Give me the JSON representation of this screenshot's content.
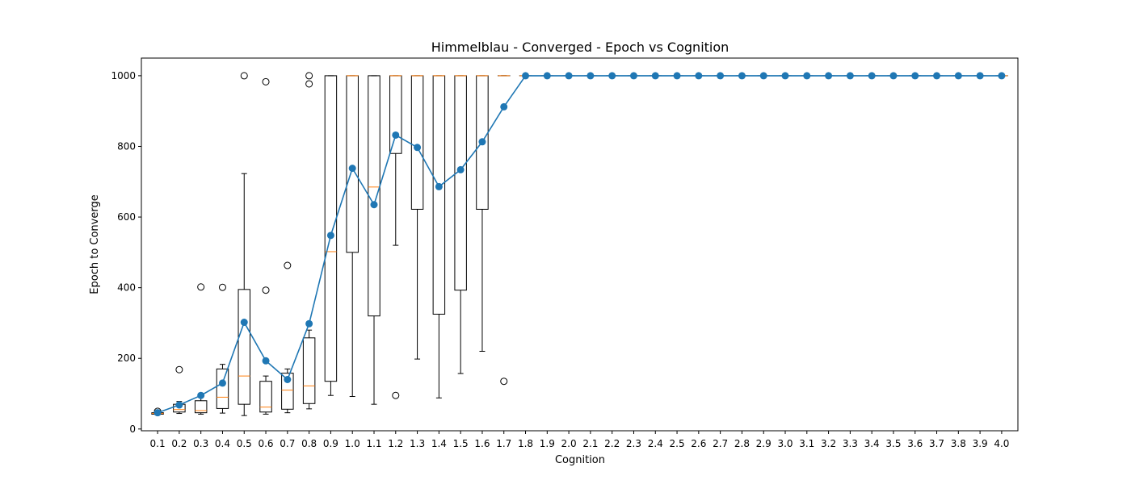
{
  "chart_data": {
    "type": "box-line",
    "title": "Himmelblau - Converged - Epoch vs Cognition",
    "xlabel": "Cognition",
    "ylabel": "Epoch to Converge",
    "ylim": [
      -5,
      1050
    ],
    "yticks": [
      0,
      200,
      400,
      600,
      800,
      1000
    ],
    "grid": false,
    "categories": [
      "0.1",
      "0.2",
      "0.3",
      "0.4",
      "0.5",
      "0.6",
      "0.7",
      "0.8",
      "0.9",
      "1.0",
      "1.1",
      "1.2",
      "1.3",
      "1.4",
      "1.5",
      "1.6",
      "1.7",
      "1.8",
      "1.9",
      "2.0",
      "2.1",
      "2.2",
      "2.3",
      "2.4",
      "2.5",
      "2.6",
      "2.7",
      "2.8",
      "2.9",
      "3.0",
      "3.1",
      "3.2",
      "3.3",
      "3.4",
      "3.5",
      "3.6",
      "3.7",
      "3.8",
      "3.9",
      "4.0"
    ],
    "boxes": [
      {
        "whislo": 40,
        "q1": 42,
        "med": 44,
        "q3": 46,
        "whishi": 48,
        "fliers": [
          50
        ]
      },
      {
        "whislo": 44,
        "q1": 48,
        "med": 55,
        "q3": 70,
        "whishi": 78,
        "fliers": [
          168
        ]
      },
      {
        "whislo": 42,
        "q1": 46,
        "med": 52,
        "q3": 80,
        "whishi": 90,
        "fliers": [
          402
        ]
      },
      {
        "whislo": 45,
        "q1": 58,
        "med": 90,
        "q3": 170,
        "whishi": 183,
        "fliers": [
          401
        ]
      },
      {
        "whislo": 38,
        "q1": 70,
        "med": 150,
        "q3": 395,
        "whishi": 723,
        "fliers": [
          1000
        ]
      },
      {
        "whislo": 42,
        "q1": 48,
        "med": 62,
        "q3": 135,
        "whishi": 150,
        "fliers": [
          393,
          983
        ]
      },
      {
        "whislo": 46,
        "q1": 56,
        "med": 110,
        "q3": 158,
        "whishi": 170,
        "fliers": [
          463
        ]
      },
      {
        "whislo": 57,
        "q1": 72,
        "med": 122,
        "q3": 258,
        "whishi": 280,
        "fliers": [
          977,
          1000
        ]
      },
      {
        "whislo": 95,
        "q1": 135,
        "med": 502,
        "q3": 1000,
        "whishi": 1000,
        "fliers": []
      },
      {
        "whislo": 92,
        "q1": 500,
        "med": 1000,
        "q3": 1000,
        "whishi": 1000,
        "fliers": []
      },
      {
        "whislo": 70,
        "q1": 320,
        "med": 685,
        "q3": 1000,
        "whishi": 1000,
        "fliers": []
      },
      {
        "whislo": 520,
        "q1": 780,
        "med": 1000,
        "q3": 1000,
        "whishi": 1000,
        "fliers": [
          95
        ]
      },
      {
        "whislo": 198,
        "q1": 622,
        "med": 1000,
        "q3": 1000,
        "whishi": 1000,
        "fliers": []
      },
      {
        "whislo": 88,
        "q1": 325,
        "med": 1000,
        "q3": 1000,
        "whishi": 1000,
        "fliers": []
      },
      {
        "whislo": 157,
        "q1": 393,
        "med": 1000,
        "q3": 1000,
        "whishi": 1000,
        "fliers": []
      },
      {
        "whislo": 220,
        "q1": 622,
        "med": 1000,
        "q3": 1000,
        "whishi": 1000,
        "fliers": []
      },
      {
        "whislo": 1000,
        "q1": 1000,
        "med": 1000,
        "q3": 1000,
        "whishi": 1000,
        "fliers": [
          135
        ]
      },
      {
        "whislo": 1000,
        "q1": 1000,
        "med": 1000,
        "q3": 1000,
        "whishi": 1000,
        "fliers": []
      },
      {
        "whislo": 1000,
        "q1": 1000,
        "med": 1000,
        "q3": 1000,
        "whishi": 1000,
        "fliers": []
      },
      {
        "whislo": 1000,
        "q1": 1000,
        "med": 1000,
        "q3": 1000,
        "whishi": 1000,
        "fliers": []
      },
      {
        "whislo": 1000,
        "q1": 1000,
        "med": 1000,
        "q3": 1000,
        "whishi": 1000,
        "fliers": []
      },
      {
        "whislo": 1000,
        "q1": 1000,
        "med": 1000,
        "q3": 1000,
        "whishi": 1000,
        "fliers": []
      },
      {
        "whislo": 1000,
        "q1": 1000,
        "med": 1000,
        "q3": 1000,
        "whishi": 1000,
        "fliers": []
      },
      {
        "whislo": 1000,
        "q1": 1000,
        "med": 1000,
        "q3": 1000,
        "whishi": 1000,
        "fliers": []
      },
      {
        "whislo": 1000,
        "q1": 1000,
        "med": 1000,
        "q3": 1000,
        "whishi": 1000,
        "fliers": []
      },
      {
        "whislo": 1000,
        "q1": 1000,
        "med": 1000,
        "q3": 1000,
        "whishi": 1000,
        "fliers": []
      },
      {
        "whislo": 1000,
        "q1": 1000,
        "med": 1000,
        "q3": 1000,
        "whishi": 1000,
        "fliers": []
      },
      {
        "whislo": 1000,
        "q1": 1000,
        "med": 1000,
        "q3": 1000,
        "whishi": 1000,
        "fliers": []
      },
      {
        "whislo": 1000,
        "q1": 1000,
        "med": 1000,
        "q3": 1000,
        "whishi": 1000,
        "fliers": []
      },
      {
        "whislo": 1000,
        "q1": 1000,
        "med": 1000,
        "q3": 1000,
        "whishi": 1000,
        "fliers": []
      },
      {
        "whislo": 1000,
        "q1": 1000,
        "med": 1000,
        "q3": 1000,
        "whishi": 1000,
        "fliers": []
      },
      {
        "whislo": 1000,
        "q1": 1000,
        "med": 1000,
        "q3": 1000,
        "whishi": 1000,
        "fliers": []
      },
      {
        "whislo": 1000,
        "q1": 1000,
        "med": 1000,
        "q3": 1000,
        "whishi": 1000,
        "fliers": []
      },
      {
        "whislo": 1000,
        "q1": 1000,
        "med": 1000,
        "q3": 1000,
        "whishi": 1000,
        "fliers": []
      },
      {
        "whislo": 1000,
        "q1": 1000,
        "med": 1000,
        "q3": 1000,
        "whishi": 1000,
        "fliers": []
      },
      {
        "whislo": 1000,
        "q1": 1000,
        "med": 1000,
        "q3": 1000,
        "whishi": 1000,
        "fliers": []
      },
      {
        "whislo": 1000,
        "q1": 1000,
        "med": 1000,
        "q3": 1000,
        "whishi": 1000,
        "fliers": []
      },
      {
        "whislo": 1000,
        "q1": 1000,
        "med": 1000,
        "q3": 1000,
        "whishi": 1000,
        "fliers": []
      },
      {
        "whislo": 1000,
        "q1": 1000,
        "med": 1000,
        "q3": 1000,
        "whishi": 1000,
        "fliers": []
      },
      {
        "whislo": 1000,
        "q1": 1000,
        "med": 1000,
        "q3": 1000,
        "whishi": 1000,
        "fliers": []
      }
    ],
    "mean_line": {
      "values": [
        46,
        68,
        95,
        130,
        302,
        193,
        140,
        298,
        548,
        738,
        635,
        832,
        797,
        686,
        734,
        813,
        912,
        1000,
        1000,
        1000,
        1000,
        1000,
        1000,
        1000,
        1000,
        1000,
        1000,
        1000,
        1000,
        1000,
        1000,
        1000,
        1000,
        1000,
        1000,
        1000,
        1000,
        1000,
        1000,
        1000
      ],
      "color": "#1f77b4"
    },
    "colors": {
      "box": "#000000",
      "median": "#ff7f0e",
      "mean": "#1f77b4"
    }
  }
}
